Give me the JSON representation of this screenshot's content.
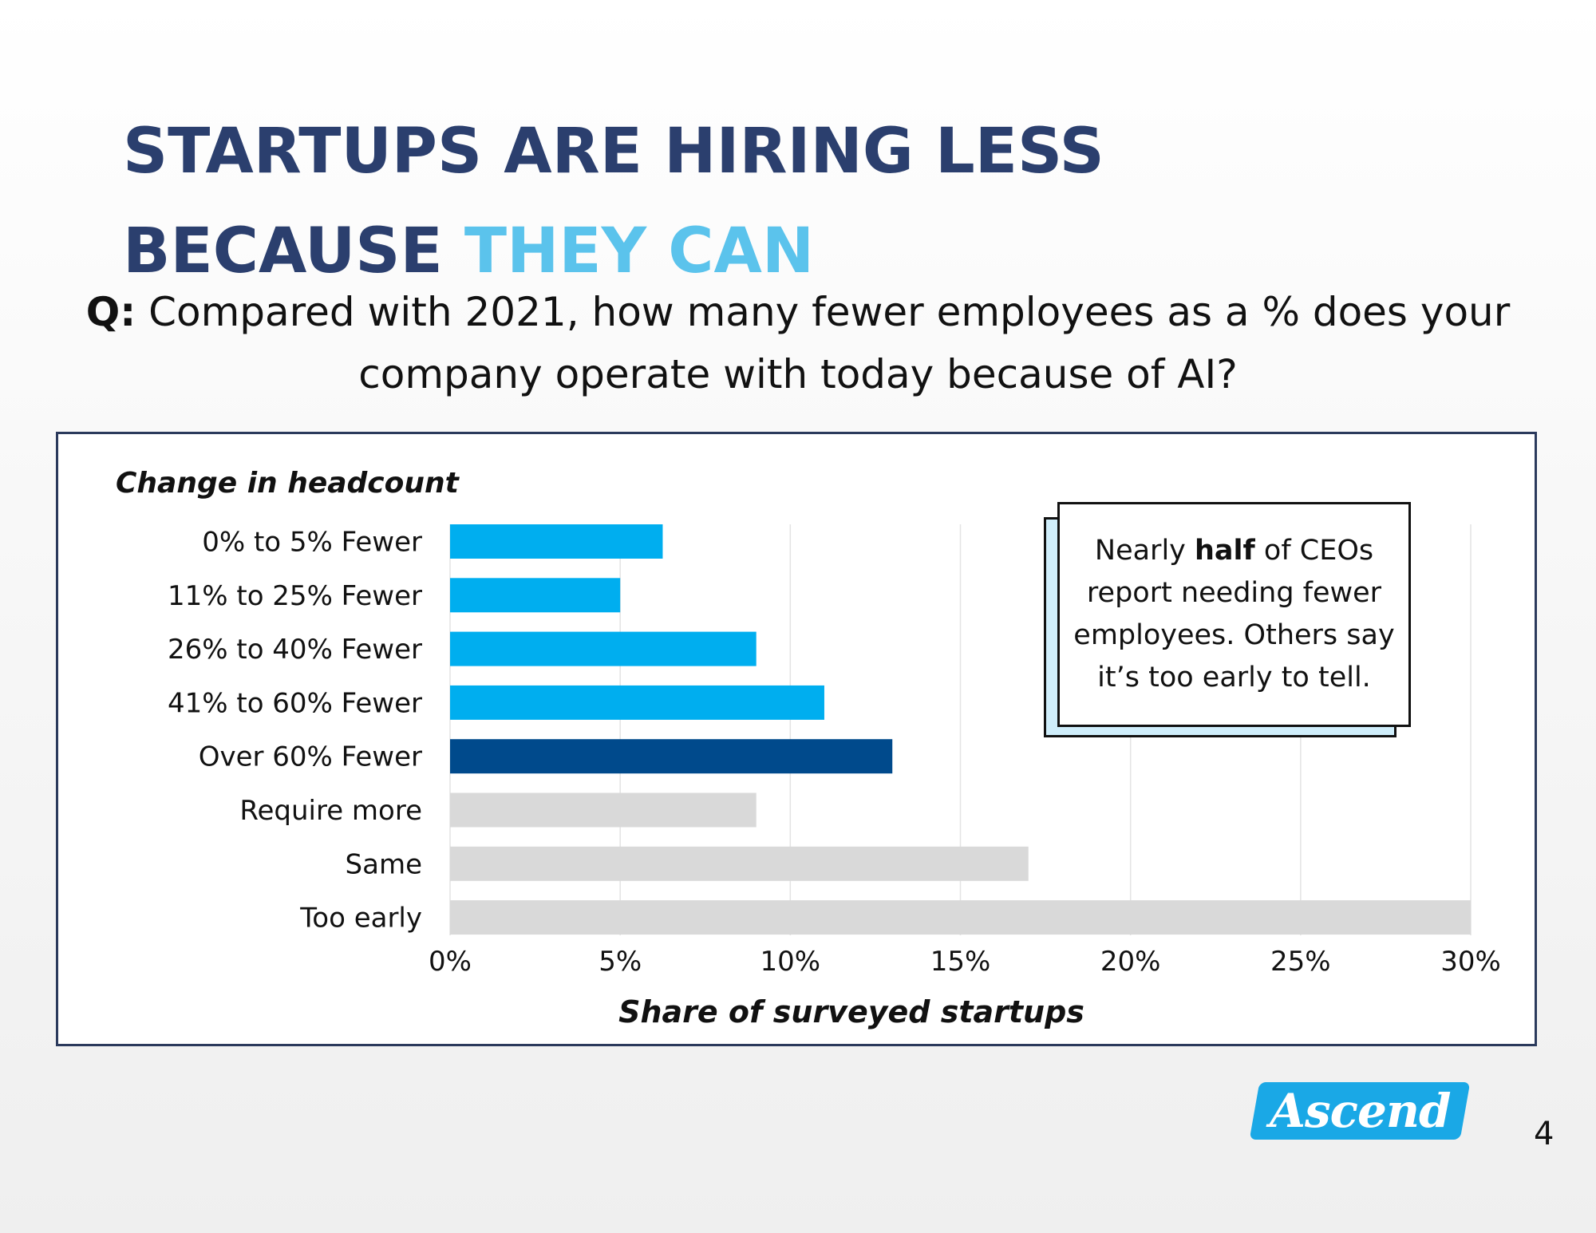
{
  "header": {
    "title_line1": "STARTUPS ARE HIRING LESS",
    "title_line2_a": "BECAUSE ",
    "title_line2_b": "THEY CAN",
    "question_prefix": "Q:",
    "question_text": " Compared with 2021, how many fewer employees as a % does your company operate with today because of AI?"
  },
  "callout": {
    "pre": "Nearly ",
    "bold": "half",
    "post": " of CEOs report needing fewer employees. Others say it’s too early to tell."
  },
  "footer": {
    "logo_text": "Ascend",
    "page_number": "4"
  },
  "colors": {
    "title": "#2b3f6e",
    "accent": "#5bc3ec",
    "bar_light_blue": "#00aeef",
    "bar_dark_blue": "#004a8c",
    "bar_gray": "#d9d9d9"
  },
  "chart_data": {
    "type": "bar",
    "orientation": "horizontal",
    "ylabel": "Change in headcount",
    "xlabel": "Share of surveyed startups",
    "categories": [
      "0% to 5% Fewer",
      "11% to 25% Fewer",
      "26% to 40% Fewer",
      "41% to 60% Fewer",
      "Over 60% Fewer",
      "Require more",
      "Same",
      "Too early"
    ],
    "values": [
      6.25,
      5,
      9,
      11,
      13,
      9,
      17,
      30
    ],
    "bar_colors": [
      "#00aeef",
      "#00aeef",
      "#00aeef",
      "#00aeef",
      "#004a8c",
      "#d9d9d9",
      "#d9d9d9",
      "#d9d9d9"
    ],
    "xlim": [
      0,
      30
    ],
    "xticks": [
      0,
      5,
      10,
      15,
      20,
      25,
      30
    ],
    "tick_format": "%",
    "grid": "vertical"
  }
}
